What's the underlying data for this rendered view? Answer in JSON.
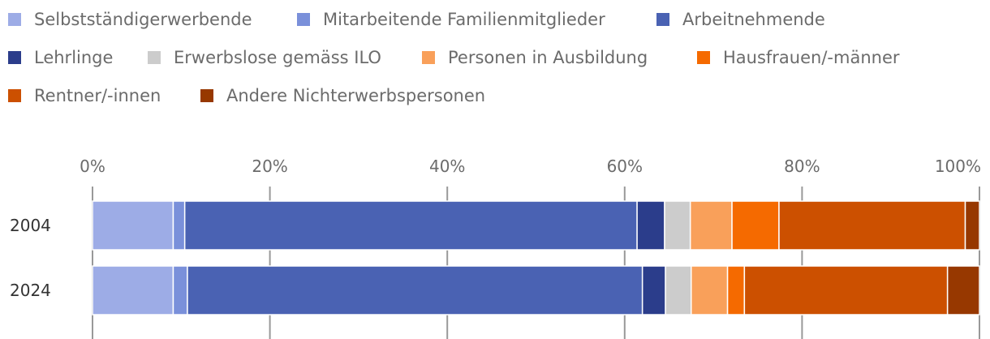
{
  "chart_data": {
    "type": "bar",
    "orientation": "horizontal",
    "stacked": "percent",
    "categories": [
      "2004",
      "2024"
    ],
    "series": [
      {
        "name": "Selbstständigerwerbende",
        "color": "#9dace6",
        "values": [
          9.1,
          9.1
        ]
      },
      {
        "name": "Mitarbeitende Familienmitglieder",
        "color": "#7a90da",
        "values": [
          1.3,
          1.6
        ]
      },
      {
        "name": "Arbeitnehmende",
        "color": "#4a62b3",
        "values": [
          51.0,
          51.3
        ]
      },
      {
        "name": "Lehrlinge",
        "color": "#2b3d8b",
        "values": [
          3.1,
          2.6
        ]
      },
      {
        "name": "Erwerbslose gemäss ILO",
        "color": "#cccccc",
        "values": [
          2.9,
          2.9
        ]
      },
      {
        "name": "Personen in Ausbildung",
        "color": "#f9a05a",
        "values": [
          4.7,
          4.1
        ]
      },
      {
        "name": "Hausfrauen/-männer",
        "color": "#f56a00",
        "values": [
          5.3,
          1.9
        ]
      },
      {
        "name": "Rentner/-innen",
        "color": "#cc5000",
        "values": [
          21.0,
          22.9
        ]
      },
      {
        "name": "Andere Nichterwerbspersonen",
        "color": "#973800",
        "values": [
          1.6,
          3.6
        ]
      }
    ],
    "x_ticks": [
      "0%",
      "20%",
      "40%",
      "60%",
      "80%",
      "100%"
    ],
    "xlim": [
      0,
      100
    ],
    "grid": true,
    "legend_position": "top"
  }
}
